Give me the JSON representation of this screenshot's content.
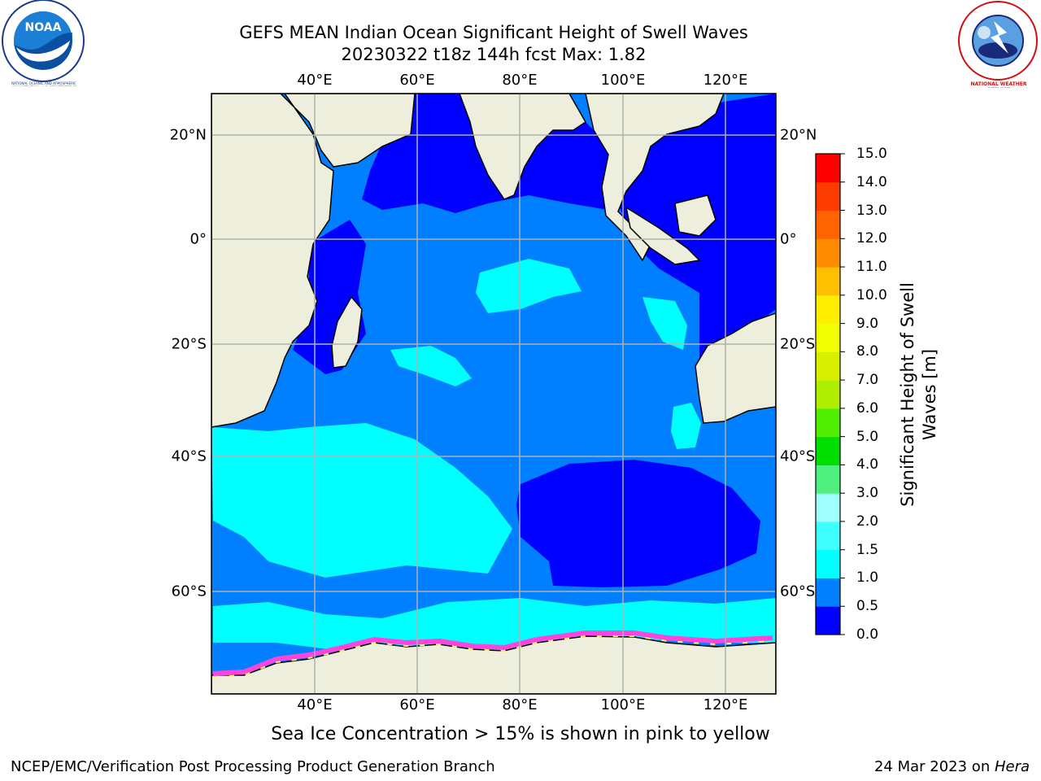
{
  "title": {
    "line1": "GEFS MEAN Indian Ocean Significant Height of Swell Waves",
    "line2": "20230322 t18z 144h fcst   Max: 1.82"
  },
  "axes": {
    "lon_labels": [
      "40°E",
      "60°E",
      "80°E",
      "100°E",
      "120°E"
    ],
    "lat_labels": [
      "20°N",
      "0°",
      "20°S",
      "40°S",
      "60°S"
    ]
  },
  "colorbar": {
    "title_line1": "Significant Height of Swell",
    "title_line2": "Waves [m]",
    "ticks": [
      "0.0",
      "0.5",
      "1.0",
      "1.5",
      "2.0",
      "3.0",
      "4.0",
      "5.0",
      "6.0",
      "7.0",
      "8.0",
      "9.0",
      "10.0",
      "11.0",
      "12.0",
      "13.0",
      "14.0",
      "15.0"
    ],
    "colors": [
      "#0000ff",
      "#0080ff",
      "#00ffff",
      "#40ffff",
      "#a0ffff",
      "#50f080",
      "#00dd00",
      "#50ee00",
      "#b0ee00",
      "#d8f000",
      "#f0ff00",
      "#ffee00",
      "#ffc000",
      "#ff8c00",
      "#ff6400",
      "#ff3c00",
      "#ff0000"
    ]
  },
  "map_colors": {
    "land": "#eeeedd",
    "low_swell": "#0000ff",
    "mid_swell": "#0080ff",
    "high_swell": "#00ffff",
    "sea_ice": "#ff44dd",
    "grid": "#b0b0b0"
  },
  "logos": {
    "noaa": "NOAA",
    "noaa_ring": "NATIONAL OCEANIC AND ATMOSPHERIC ADMINISTRATION · U.S. DEPARTMENT OF COMMERCE",
    "nws_ring": "NATIONAL WEATHER SERVICE"
  },
  "caption": "Sea Ice Concentration > 15% is shown in pink to yellow",
  "footer": {
    "left": "NCEP/EMC/Verification Post Processing Product Generation Branch",
    "right_date": "24 Mar 2023 on ",
    "right_host": "Hera"
  }
}
